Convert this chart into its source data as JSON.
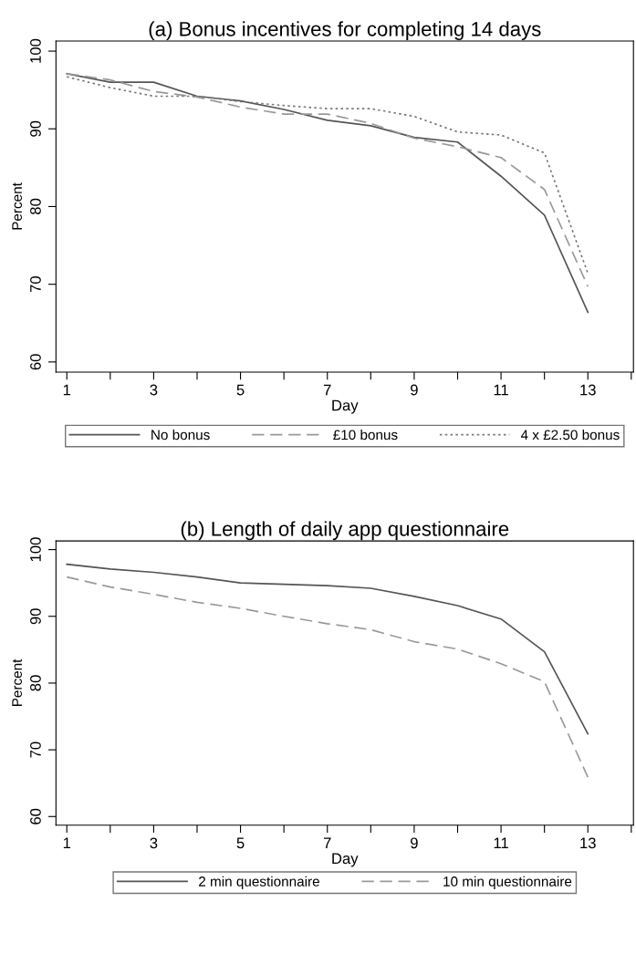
{
  "chart_data": [
    {
      "type": "line",
      "title": "(a) Bonus incentives for completing 14 days",
      "xlabel": "Day",
      "ylabel": "Percent",
      "x": [
        1,
        2,
        3,
        4,
        5,
        6,
        7,
        8,
        9,
        10,
        11,
        12,
        13
      ],
      "xlim": [
        0.75,
        14.05
      ],
      "xticks": [
        1,
        {
          "value": 2,
          "label": null
        },
        3,
        {
          "value": 4,
          "label": null
        },
        5,
        {
          "value": 6,
          "label": null
        },
        7,
        {
          "value": 8,
          "label": null
        },
        9,
        {
          "value": 10,
          "label": null
        },
        11,
        {
          "value": 12,
          "label": null
        },
        13,
        {
          "value": 14,
          "label": null
        }
      ],
      "ylim": [
        58.7,
        101.3
      ],
      "yticks": [
        60,
        70,
        80,
        90,
        100
      ],
      "legend": "bottom",
      "series": [
        {
          "name": "No bonus",
          "color": "#555555",
          "line_style": "solid",
          "values": [
            97.1,
            96.0,
            96.0,
            94.2,
            93.6,
            92.5,
            91.1,
            90.4,
            88.9,
            88.3,
            83.9,
            78.9,
            66.4
          ]
        },
        {
          "name": "£10 bonus",
          "color": "#999999",
          "line_style": "dashed",
          "values": [
            97.1,
            96.3,
            94.8,
            94.1,
            92.8,
            91.9,
            91.9,
            90.7,
            88.8,
            87.7,
            86.3,
            82.2,
            69.7
          ]
        },
        {
          "name": "4 x £2.50 bonus",
          "color": "#777777",
          "line_style": "dotted",
          "values": [
            96.7,
            95.3,
            94.2,
            94.2,
            93.5,
            93.0,
            92.6,
            92.6,
            91.6,
            89.6,
            89.2,
            86.9,
            71.4
          ]
        }
      ]
    },
    {
      "type": "line",
      "title": "(b) Length of daily app questionnaire",
      "xlabel": "Day",
      "ylabel": "Percent",
      "x": [
        1,
        2,
        3,
        4,
        5,
        6,
        7,
        8,
        9,
        10,
        11,
        12,
        13
      ],
      "xlim": [
        0.75,
        14.05
      ],
      "xticks": [
        1,
        {
          "value": 2,
          "label": null
        },
        3,
        {
          "value": 4,
          "label": null
        },
        5,
        {
          "value": 6,
          "label": null
        },
        7,
        {
          "value": 8,
          "label": null
        },
        9,
        {
          "value": 10,
          "label": null
        },
        11,
        {
          "value": 12,
          "label": null
        },
        13,
        {
          "value": 14,
          "label": null
        }
      ],
      "ylim": [
        58.7,
        101.3
      ],
      "yticks": [
        60,
        70,
        80,
        90,
        100
      ],
      "legend": "bottom",
      "series": [
        {
          "name": "2 min questionnaire",
          "color": "#555555",
          "line_style": "solid",
          "values": [
            97.8,
            97.1,
            96.6,
            95.9,
            95.0,
            94.8,
            94.6,
            94.2,
            93.0,
            91.6,
            89.6,
            84.7,
            72.4
          ]
        },
        {
          "name": "10 min questionnaire",
          "color": "#999999",
          "line_style": "dashed",
          "values": [
            95.9,
            94.4,
            93.3,
            92.1,
            91.2,
            90.0,
            88.9,
            88.0,
            86.2,
            85.1,
            82.9,
            80.2,
            65.9
          ]
        }
      ]
    }
  ]
}
